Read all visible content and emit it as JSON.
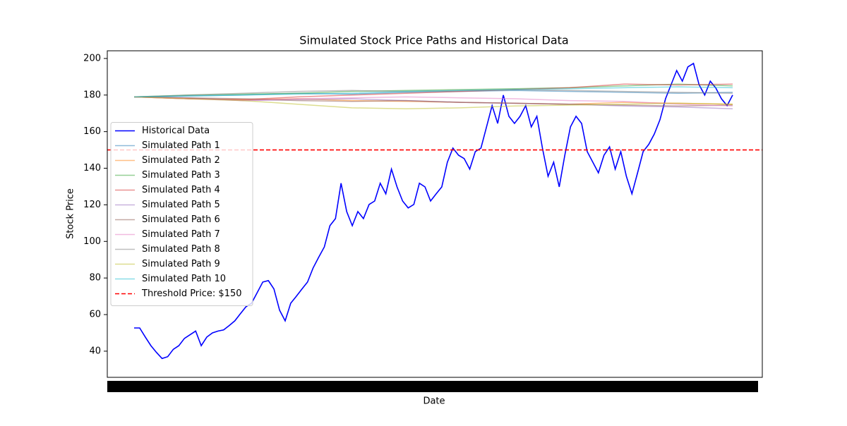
{
  "chart_data": {
    "type": "line",
    "title": "Simulated Stock Price Paths and Historical Data",
    "xlabel": "Date",
    "ylabel": "Stock Price",
    "ylim": [
      25.7,
      204.2
    ],
    "yticks": [
      40,
      60,
      80,
      100,
      120,
      140,
      160,
      180,
      200
    ],
    "legend": "center left",
    "threshold": {
      "value": 150,
      "label": "Threshold Price: $150",
      "color": "#ff0000"
    },
    "series": [
      {
        "name": "Historical Data",
        "color": "#0000ff",
        "values": [
          52.7,
          52.7,
          47.7,
          43,
          39.3,
          36,
          37,
          41,
          43,
          47,
          49,
          51,
          43,
          47.7,
          50,
          51,
          51.6,
          54,
          56.6,
          60.5,
          64.3,
          66.2,
          72,
          77.8,
          78.6,
          74,
          62.4,
          56.6,
          66.2,
          70,
          74,
          77.8,
          85.5,
          91.3,
          97,
          108.6,
          112.5,
          131.8,
          116.3,
          108.6,
          116.3,
          112.5,
          120.2,
          122.1,
          131.8,
          126,
          139.5,
          129.8,
          122.1,
          118.3,
          120.2,
          131.8,
          129.8,
          122.1,
          126,
          129.8,
          143.3,
          151,
          147.1,
          145.3,
          139.5,
          149.1,
          151,
          162.6,
          174.2,
          164.5,
          180,
          168.4,
          164.5,
          168.4,
          174.2,
          162.6,
          168.4,
          151,
          135.6,
          143.3,
          129.8,
          147.1,
          162.6,
          168.4,
          164.5,
          149.1,
          143.3,
          137.5,
          147.1,
          151.7,
          139.5,
          149.1,
          135.6,
          126,
          137.5,
          149.1,
          153,
          158.7,
          166.5,
          178,
          185.7,
          193.4,
          187.6,
          195.4,
          197.3,
          185.7,
          180,
          187.6,
          183.8,
          178,
          174.2,
          180
        ]
      },
      {
        "name": "Simulated Path 1",
        "color": "#1f77b4",
        "values": [
          179,
          179.5,
          180,
          181,
          180.5,
          181.5,
          182,
          182.5,
          182,
          181.5,
          181,
          181.5
        ]
      },
      {
        "name": "Simulated Path 2",
        "color": "#ff7f0e",
        "values": [
          179,
          178,
          177.5,
          178,
          177,
          176.5,
          176,
          175.5,
          175,
          176,
          175.5,
          175
        ]
      },
      {
        "name": "Simulated Path 3",
        "color": "#2ca02c",
        "values": [
          179,
          180,
          180.5,
          181,
          182,
          182.5,
          183,
          183.5,
          184,
          185,
          186,
          185
        ]
      },
      {
        "name": "Simulated Path 4",
        "color": "#d62728",
        "values": [
          179,
          178,
          177.5,
          179,
          180,
          181,
          182,
          183,
          184,
          186,
          185.5,
          186
        ]
      },
      {
        "name": "Simulated Path 5",
        "color": "#9467bd",
        "values": [
          179,
          178.5,
          177,
          177.5,
          178,
          177,
          176,
          175.5,
          175,
          174,
          173.5,
          172.5
        ]
      },
      {
        "name": "Simulated Path 6",
        "color": "#8c564b",
        "values": [
          179,
          178.5,
          178,
          177,
          176.5,
          177,
          176,
          175.5,
          175,
          174.5,
          174,
          174.5
        ]
      },
      {
        "name": "Simulated Path 7",
        "color": "#e377c2",
        "values": [
          179,
          178,
          177,
          178,
          178.5,
          179,
          178.5,
          178,
          177,
          176.5,
          175,
          174
        ]
      },
      {
        "name": "Simulated Path 8",
        "color": "#7f7f7f",
        "values": [
          179,
          180,
          181,
          182,
          182.5,
          182,
          182.5,
          183,
          182.5,
          182,
          181.5,
          181
        ]
      },
      {
        "name": "Simulated Path 9",
        "color": "#bcbd22",
        "values": [
          179,
          178,
          177,
          175,
          173,
          172.5,
          173,
          174,
          174.5,
          175,
          175.5,
          175
        ]
      },
      {
        "name": "Simulated Path 10",
        "color": "#17becf",
        "values": [
          179,
          179.5,
          180,
          180.5,
          181,
          182,
          182.5,
          183,
          183.5,
          184,
          184.5,
          184
        ]
      }
    ]
  }
}
